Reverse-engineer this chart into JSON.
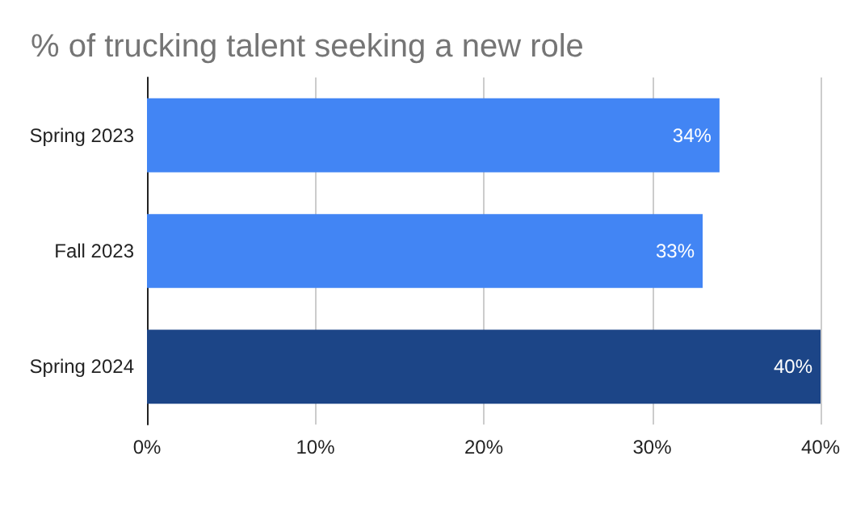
{
  "chart_data": {
    "type": "bar",
    "orientation": "horizontal",
    "title": "% of trucking talent seeking a new role",
    "categories": [
      "Spring 2023",
      "Fall 2023",
      "Spring 2024"
    ],
    "values": [
      34,
      33,
      40
    ],
    "colors": [
      "#4285f4",
      "#4285f4",
      "#1c4587"
    ],
    "value_labels": [
      "34%",
      "33%",
      "40%"
    ],
    "xlim": [
      0,
      40
    ],
    "xticks": [
      {
        "value": 0,
        "label": "0%"
      },
      {
        "value": 10,
        "label": "10%"
      },
      {
        "value": 20,
        "label": "20%"
      },
      {
        "value": 30,
        "label": "30%"
      },
      {
        "value": 40,
        "label": "40%"
      }
    ],
    "grid": "x"
  }
}
